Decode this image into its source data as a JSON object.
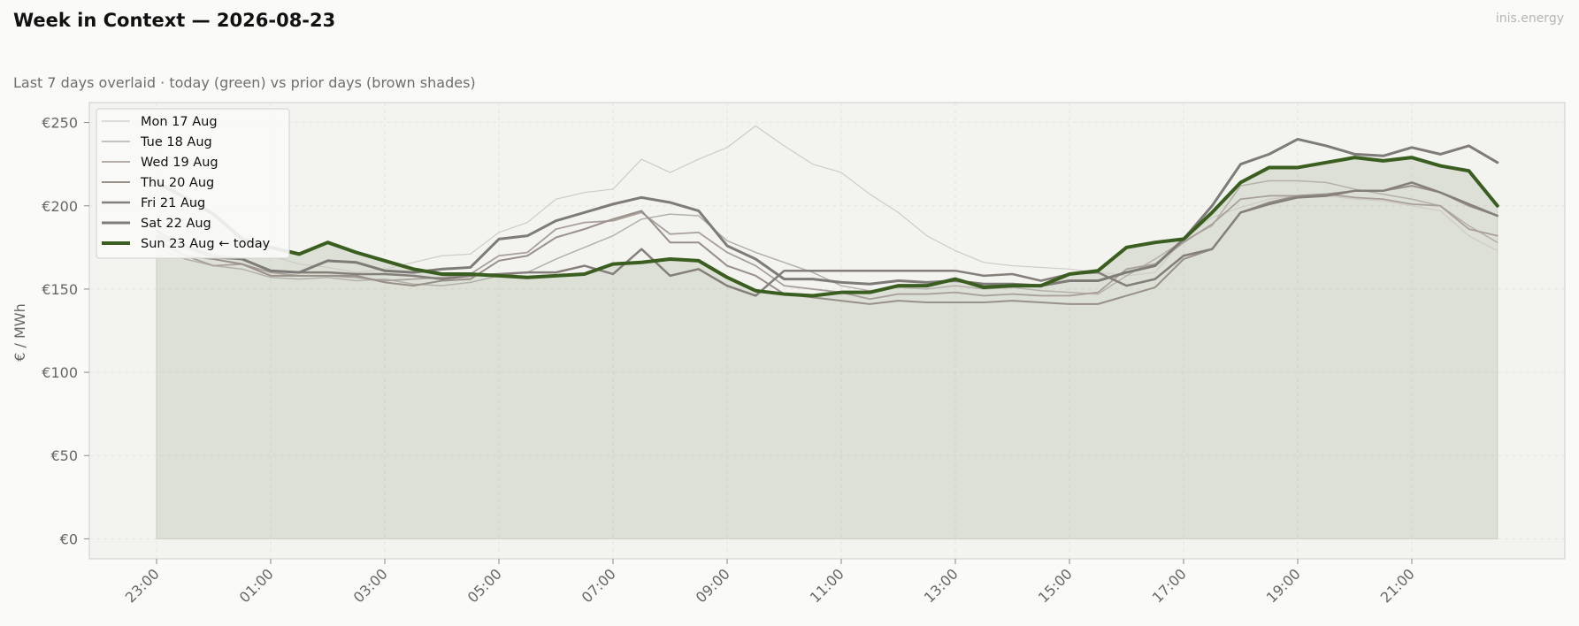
{
  "header": {
    "title": "Week in Context — 2026-08-23",
    "subtitle": "Last 7 days overlaid  ·  today (green) vs prior days (brown shades)",
    "brand": "inis.energy"
  },
  "colors": {
    "today": "#3a5e1f",
    "today_fill": "#3a5e1f",
    "panel_bg": "#f3f3f0",
    "grid": "#e6e6e0"
  },
  "chart_data": {
    "type": "line",
    "title": "Week in Context — 2026-08-23",
    "xlabel": "",
    "ylabel": "€ / MWh",
    "ylim": [
      -12,
      262
    ],
    "yticks": [
      0,
      50,
      100,
      150,
      200,
      250
    ],
    "ytick_labels": [
      "€0",
      "€50",
      "€100",
      "€150",
      "€200",
      "€250"
    ],
    "xticks": [
      "23:00",
      "01:00",
      "03:00",
      "05:00",
      "07:00",
      "09:00",
      "11:00",
      "13:00",
      "15:00",
      "17:00",
      "19:00",
      "21:00"
    ],
    "x": [
      "23:00",
      "23:30",
      "00:00",
      "00:30",
      "01:00",
      "01:30",
      "02:00",
      "02:30",
      "03:00",
      "03:30",
      "04:00",
      "04:30",
      "05:00",
      "05:30",
      "06:00",
      "06:30",
      "07:00",
      "07:30",
      "08:00",
      "08:30",
      "09:00",
      "09:30",
      "10:00",
      "10:30",
      "11:00",
      "11:30",
      "12:00",
      "12:30",
      "13:00",
      "13:30",
      "14:00",
      "14:30",
      "15:00",
      "15:30",
      "16:00",
      "16:30",
      "17:00",
      "17:30",
      "18:00",
      "18:30",
      "19:00",
      "19:30",
      "20:00",
      "20:30",
      "21:00",
      "21:30",
      "22:00",
      "22:30"
    ],
    "grid": true,
    "legend_position": "top-left",
    "series": [
      {
        "name": "Mon 17 Aug",
        "color": "#cfcbc6",
        "width": 1.2,
        "values": [
          170,
          170,
          172,
          168,
          170,
          165,
          163,
          160,
          162,
          166,
          170,
          171,
          184,
          190,
          204,
          208,
          210,
          228,
          220,
          228,
          235,
          248,
          236,
          225,
          220,
          207,
          196,
          182,
          173,
          166,
          164,
          163,
          162,
          160,
          158,
          160,
          180,
          193,
          199,
          204,
          206,
          206,
          204,
          203,
          200,
          197,
          182,
          173
        ]
      },
      {
        "name": "Tue 18 Aug",
        "color": "#b5b0ab",
        "width": 1.5,
        "values": [
          175,
          168,
          164,
          162,
          157,
          156,
          157,
          155,
          156,
          153,
          152,
          154,
          158,
          160,
          168,
          175,
          182,
          192,
          195,
          194,
          179,
          172,
          166,
          160,
          152,
          149,
          151,
          150,
          152,
          150,
          151,
          149,
          148,
          147,
          158,
          168,
          179,
          188,
          212,
          215,
          215,
          214,
          210,
          207,
          204,
          200,
          188,
          178
        ]
      },
      {
        "name": "Wed 19 Aug",
        "color": "#aaa09b",
        "width": 1.8,
        "values": [
          178,
          170,
          164,
          165,
          160,
          158,
          158,
          157,
          155,
          156,
          157,
          159,
          170,
          172,
          186,
          190,
          191,
          196,
          183,
          184,
          172,
          164,
          152,
          150,
          148,
          144,
          147,
          147,
          148,
          146,
          147,
          146,
          146,
          148,
          162,
          165,
          178,
          189,
          204,
          206,
          206,
          207,
          205,
          204,
          201,
          200,
          186,
          182
        ]
      },
      {
        "name": "Thu 20 Aug",
        "color": "#999089",
        "width": 2.0,
        "values": [
          180,
          170,
          168,
          165,
          158,
          158,
          158,
          158,
          154,
          152,
          155,
          156,
          167,
          170,
          181,
          186,
          192,
          197,
          178,
          178,
          164,
          158,
          147,
          145,
          143,
          141,
          143,
          142,
          142,
          142,
          143,
          142,
          141,
          141,
          146,
          151,
          168,
          174,
          196,
          202,
          206,
          207,
          209,
          209,
          212,
          208,
          200,
          194
        ]
      },
      {
        "name": "Fri 21 Aug",
        "color": "#857f79",
        "width": 2.5,
        "values": [
          185,
          175,
          169,
          168,
          161,
          160,
          160,
          159,
          159,
          158,
          156,
          158,
          159,
          160,
          160,
          164,
          159,
          174,
          158,
          162,
          152,
          146,
          161,
          161,
          161,
          161,
          161,
          161,
          161,
          158,
          159,
          155,
          159,
          160,
          152,
          156,
          170,
          174,
          196,
          201,
          205,
          206,
          209,
          209,
          214,
          208,
          201,
          194
        ]
      },
      {
        "name": "Sat 22 Aug",
        "color": "#7f7b78",
        "width": 3.0,
        "values": [
          182,
          176,
          170,
          168,
          161,
          160,
          167,
          166,
          161,
          160,
          162,
          163,
          180,
          182,
          191,
          196,
          201,
          205,
          202,
          197,
          176,
          168,
          156,
          156,
          154,
          153,
          155,
          154,
          155,
          153,
          153,
          152,
          155,
          155,
          160,
          164,
          180,
          200,
          225,
          231,
          240,
          236,
          231,
          230,
          235,
          231,
          236,
          226
        ]
      },
      {
        "name": "Sun 23 Aug  ← today",
        "color": "#3a5e1f",
        "width": 4.0,
        "today": true,
        "values": [
          214,
          205,
          195,
          180,
          175,
          171,
          178,
          172,
          167,
          162,
          159,
          159,
          158,
          157,
          158,
          159,
          165,
          166,
          168,
          167,
          157,
          149,
          147,
          146,
          148,
          148,
          152,
          152,
          156,
          151,
          152,
          152,
          159,
          161,
          175,
          178,
          180,
          196,
          214,
          223,
          223,
          226,
          229,
          227,
          229,
          224,
          221,
          200
        ]
      }
    ]
  }
}
